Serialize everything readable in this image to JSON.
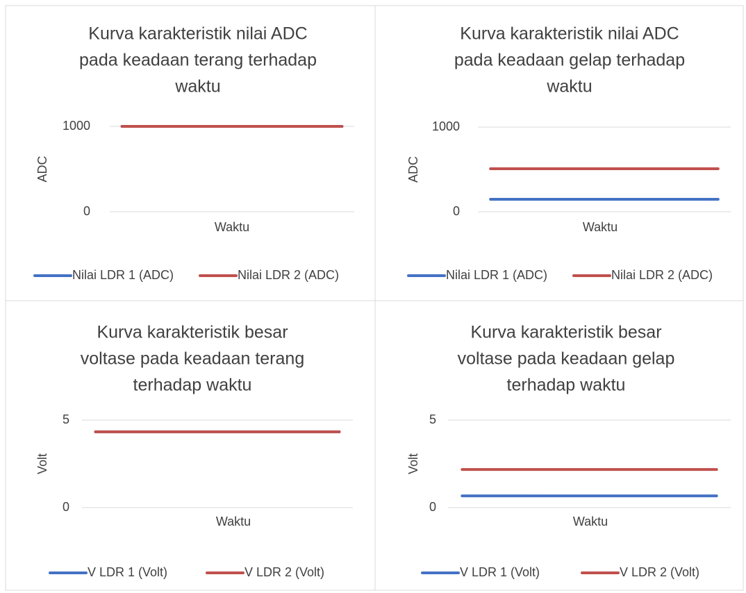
{
  "chart_data": [
    {
      "type": "line",
      "title": [
        "Kurva karakteristik nilai ADC",
        "pada keadaan terang terhadap",
        "waktu"
      ],
      "x_label": "Waktu",
      "y_label": "ADC",
      "categories": [
        null,
        null,
        null,
        null,
        null,
        null,
        null,
        null,
        null,
        null
      ],
      "series": [
        {
          "name": "Nilai LDR 1 (ADC)",
          "color": "#4472c4",
          "values": [
            1000,
            1000,
            1000,
            1000,
            1000,
            1000,
            1000,
            1000,
            1000,
            1000
          ]
        },
        {
          "name": "Nilai LDR 2 (ADC)",
          "color": "#c0504d",
          "values": [
            1000,
            1000,
            1000,
            1000,
            1000,
            1000,
            1000,
            1000,
            1000,
            1000
          ]
        }
      ],
      "ylim": [
        0,
        1000
      ],
      "yticks": [
        0,
        1000
      ],
      "grid": true,
      "legend": "bottom"
    },
    {
      "type": "line",
      "title": [
        "Kurva karakteristik nilai ADC",
        "pada keadaan gelap terhadap",
        "waktu"
      ],
      "x_label": "Waktu",
      "y_label": "ADC",
      "categories": [
        null,
        null,
        null,
        null,
        null,
        null,
        null,
        null,
        null,
        null
      ],
      "series": [
        {
          "name": "Nilai LDR 1 (ADC)",
          "color": "#4472c4",
          "values": [
            148,
            148,
            148,
            148,
            148,
            148,
            148,
            148,
            148,
            148
          ]
        },
        {
          "name": "Nilai LDR 2 (ADC)",
          "color": "#c0504d",
          "values": [
            508,
            508,
            508,
            508,
            508,
            508,
            508,
            508,
            508,
            508
          ]
        }
      ],
      "ylim": [
        0,
        1000
      ],
      "yticks": [
        0,
        1000
      ],
      "grid": true,
      "legend": "bottom"
    },
    {
      "type": "line",
      "title": [
        "Kurva karakteristik besar",
        "voltase pada keadaan terang",
        "terhadap waktu"
      ],
      "x_label": "Waktu",
      "y_label": "Volt",
      "categories": [
        null,
        null,
        null,
        null,
        null,
        null,
        null,
        null,
        null,
        null
      ],
      "series": [
        {
          "name": "V LDR 1 (Volt)",
          "color": "#4472c4",
          "values": [
            4.33,
            4.33,
            4.33,
            4.33,
            4.33,
            4.33,
            4.33,
            4.33,
            4.33,
            4.33
          ]
        },
        {
          "name": "V LDR 2 (Volt)",
          "color": "#c0504d",
          "values": [
            4.33,
            4.33,
            4.33,
            4.33,
            4.33,
            4.33,
            4.33,
            4.33,
            4.33,
            4.33
          ]
        }
      ],
      "ylim": [
        0,
        5
      ],
      "yticks": [
        0,
        5
      ],
      "grid": true,
      "legend": "bottom"
    },
    {
      "type": "line",
      "title": [
        "Kurva karakteristik besar",
        "voltase pada keadaan gelap",
        "terhadap waktu"
      ],
      "x_label": "Waktu",
      "y_label": "Volt",
      "categories": [
        null,
        null,
        null,
        null,
        null,
        null,
        null,
        null,
        null,
        null
      ],
      "series": [
        {
          "name": "V LDR 1 (Volt)",
          "color": "#4472c4",
          "values": [
            0.67,
            0.67,
            0.67,
            0.67,
            0.67,
            0.67,
            0.67,
            0.67,
            0.67,
            0.67
          ]
        },
        {
          "name": "V LDR 2 (Volt)",
          "color": "#c0504d",
          "values": [
            2.18,
            2.18,
            2.18,
            2.18,
            2.18,
            2.18,
            2.18,
            2.18,
            2.18,
            2.18
          ]
        }
      ],
      "ylim": [
        0,
        5
      ],
      "yticks": [
        0,
        5
      ],
      "grid": true,
      "legend": "bottom"
    }
  ]
}
